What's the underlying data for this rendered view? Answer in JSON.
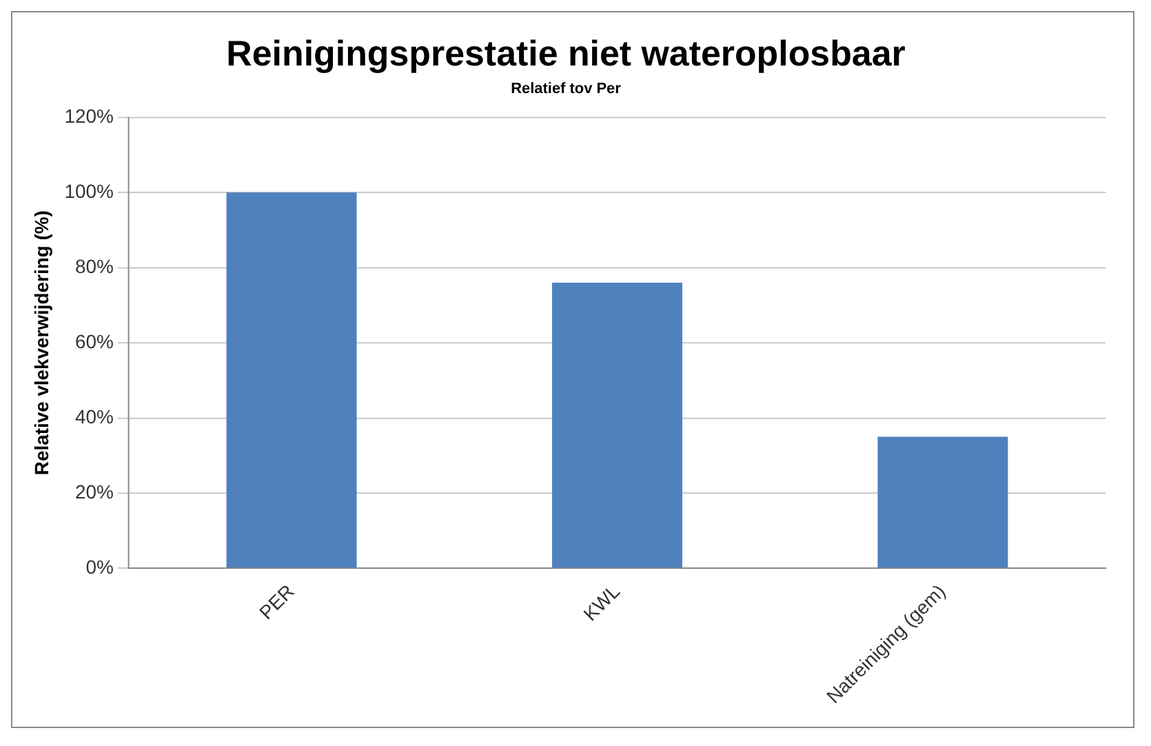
{
  "chart_data": {
    "type": "bar",
    "title": "Reinigingsprestatie niet wateroplosbaar",
    "subtitle": "Relatief tov Per",
    "ylabel": "Relative vlekverwijdering (%)",
    "categories": [
      "PER",
      "KWL",
      "Natreiniging (gem)"
    ],
    "values": [
      100,
      76,
      35
    ],
    "color": "#4f81bd",
    "ylim": [
      0,
      120
    ],
    "yticks": [
      {
        "value": 0,
        "label": "0%"
      },
      {
        "value": 20,
        "label": "20%"
      },
      {
        "value": 40,
        "label": "40%"
      },
      {
        "value": 60,
        "label": "60%"
      },
      {
        "value": 80,
        "label": "80%"
      },
      {
        "value": 100,
        "label": "100%"
      },
      {
        "value": 120,
        "label": "120%"
      }
    ],
    "grid": "y",
    "legend": false
  }
}
